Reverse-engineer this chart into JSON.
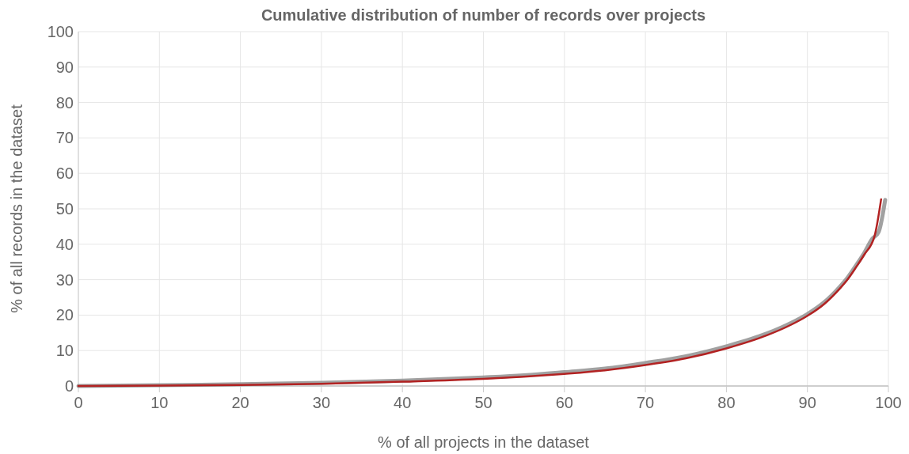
{
  "chart_data": {
    "type": "line",
    "title": "Cumulative distribution of number of records over projects",
    "xlabel": "% of all projects in the dataset",
    "ylabel": "% of all records in the dataset",
    "xlim": [
      0,
      100
    ],
    "ylim": [
      0,
      100
    ],
    "xticks": [
      0,
      10,
      20,
      30,
      40,
      50,
      60,
      70,
      80,
      90,
      100
    ],
    "yticks": [
      0,
      10,
      20,
      30,
      40,
      50,
      60,
      70,
      80,
      90,
      100
    ],
    "grid": true,
    "marker": "none",
    "line_style": "solid",
    "series": [
      {
        "color": "#8a8a8a",
        "x": [
          0,
          10,
          20,
          30,
          40,
          50,
          55,
          60,
          65,
          70,
          75,
          80,
          85,
          88,
          90,
          92,
          94,
          95,
          96,
          97,
          98,
          98.8,
          99.6
        ],
        "values": [
          0,
          0.2,
          0.5,
          0.9,
          1.5,
          2.4,
          3.0,
          3.9,
          4.9,
          6.5,
          8.4,
          11.2,
          14.8,
          17.8,
          20.3,
          23.5,
          28,
          30.7,
          34,
          37.5,
          41.5,
          43.5,
          52.5
        ]
      },
      {
        "color": "#b22222",
        "x": [
          0,
          10,
          20,
          30,
          40,
          50,
          55,
          60,
          65,
          70,
          75,
          80,
          85,
          88,
          90,
          92,
          94,
          95,
          96,
          97,
          98.3,
          99.1
        ],
        "values": [
          0,
          0.1,
          0.3,
          0.6,
          1.2,
          2.0,
          2.6,
          3.4,
          4.4,
          5.9,
          7.8,
          10.6,
          14.3,
          17.3,
          19.8,
          23,
          27.5,
          30.2,
          33.5,
          37,
          42.4,
          52.7
        ]
      }
    ]
  }
}
